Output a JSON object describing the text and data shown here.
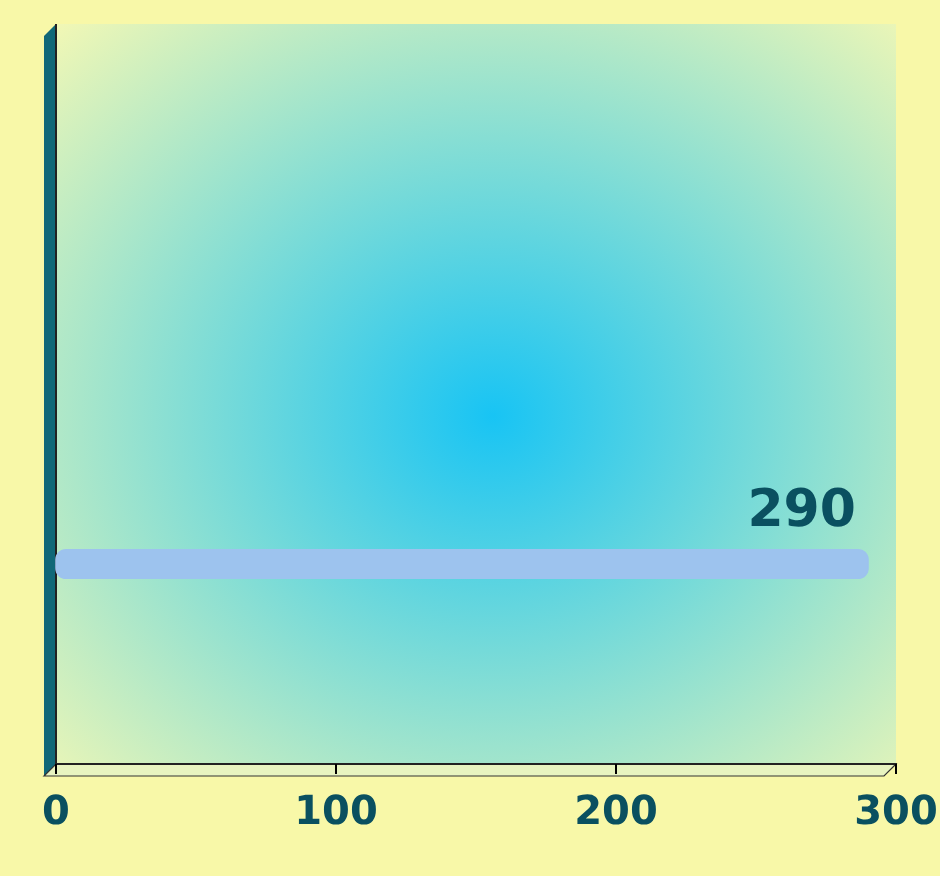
{
  "chart_data": {
    "type": "bar",
    "orientation": "horizontal",
    "categories": [
      null
    ],
    "series": [
      {
        "color": "#9dc3ee",
        "values": [
          290
        ]
      }
    ],
    "xlim": [
      0,
      300
    ],
    "xticks": [
      0,
      100,
      200,
      300
    ],
    "data_labels": true
  }
}
